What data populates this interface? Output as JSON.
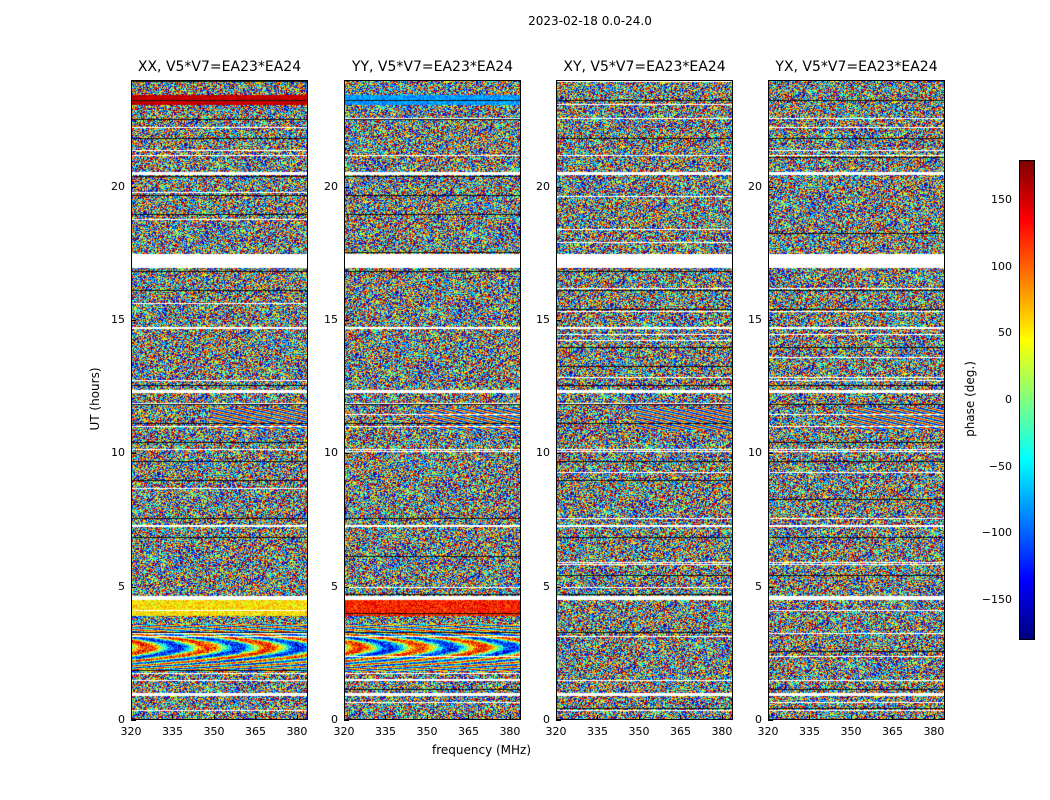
{
  "suptitle": "2023-02-18 0.0-24.0",
  "colors": {
    "jet": [
      "#00007f",
      "#0000ff",
      "#007fff",
      "#00ffff",
      "#7fff7f",
      "#ffff00",
      "#ff7f00",
      "#ff0000",
      "#7f0000"
    ]
  },
  "chart_data": {
    "type": "heatmap",
    "xlabel": "frequency (MHz)",
    "ylabel": "UT (hours)",
    "xlim": [
      320,
      384
    ],
    "ylim": [
      0,
      24
    ],
    "xticks": [
      "320",
      "335",
      "350",
      "365",
      "380"
    ],
    "yticks": [
      "0",
      "5",
      "10",
      "15",
      "20"
    ],
    "colorbar": {
      "label": "phase (deg.)",
      "range": [
        -180,
        180
      ],
      "ticks": [
        "150",
        "100",
        "50",
        "0",
        "−50",
        "−100",
        "−150"
      ],
      "tick_values": [
        150,
        100,
        50,
        0,
        -50,
        -100,
        -150
      ]
    },
    "panels": [
      {
        "title": "XX, V5*V7=EA23*EA24"
      },
      {
        "title": "YY, V5*V7=EA23*EA24"
      },
      {
        "title": "XY, V5*V7=EA23*EA24"
      },
      {
        "title": "YX, V5*V7=EA23*EA24"
      }
    ]
  }
}
